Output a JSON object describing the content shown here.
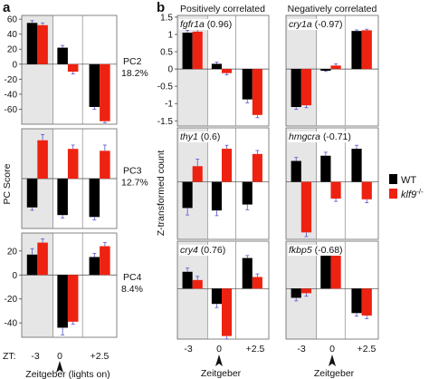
{
  "figure": {
    "panel_a_letter": "a",
    "panel_b_letter": "b",
    "pc_axis_label": "PC Score",
    "z_axis_label": "Z-transformed count",
    "zt_label": "ZT:",
    "x_ticks": [
      "-3",
      "0",
      "+2.5"
    ],
    "zeitgeber_a": "Zeitgeber (lights on)",
    "zeitgeber_b": "Zeitgeber",
    "pos_header": "Positively correlated",
    "neg_header": "Negatively correlated",
    "legend": {
      "wt": "WT",
      "mut_gene": "klf9",
      "mut_suffix": "-/-"
    },
    "colors": {
      "wt": "#000000",
      "mut": "#ee2211",
      "shade": "#e6e6e6",
      "err": "#5555cc"
    }
  },
  "chart_data": [
    {
      "type": "bar",
      "panel": "a",
      "name": "PC2",
      "pct": "18.2%",
      "ylim": [
        -80,
        65
      ],
      "yticks": [
        "60",
        "40",
        "20",
        "0",
        "-20",
        "-40",
        "-60"
      ],
      "categories": [
        "-3",
        "0",
        "+2.5"
      ],
      "series": [
        {
          "name": "WT",
          "values": [
            55,
            22,
            -57
          ],
          "err": [
            3,
            3,
            3
          ]
        },
        {
          "name": "klf9-/-",
          "values": [
            52,
            -10,
            -76
          ],
          "err": [
            3,
            3,
            2
          ]
        }
      ]
    },
    {
      "type": "bar",
      "panel": "a",
      "name": "PC3",
      "pct": "12.7%",
      "ylim": [
        -52,
        52
      ],
      "categories": [
        "-3",
        "0",
        "+2.5"
      ],
      "series": [
        {
          "name": "WT",
          "values": [
            -30,
            -38,
            -40
          ],
          "err": [
            3,
            3,
            3
          ]
        },
        {
          "name": "klf9-/-",
          "values": [
            40,
            31,
            29
          ],
          "err": [
            6,
            4,
            6
          ]
        }
      ]
    },
    {
      "type": "bar",
      "panel": "a",
      "name": "PC4",
      "pct": "8.4%",
      "ylim": [
        -52,
        35
      ],
      "yticks": [
        "20",
        "0",
        "-20",
        "-40"
      ],
      "categories": [
        "-3",
        "0",
        "+2.5"
      ],
      "series": [
        {
          "name": "WT",
          "values": [
            17,
            -44,
            15
          ],
          "err": [
            5,
            6,
            3
          ]
        },
        {
          "name": "klf9-/-",
          "values": [
            27,
            -39,
            24
          ],
          "err": [
            3,
            2,
            3
          ]
        }
      ]
    },
    {
      "type": "bar",
      "panel": "b",
      "name": "fgfr1a",
      "r": "(0.96)",
      "ylim": [
        -1.65,
        1.55
      ],
      "yticks": [
        "1.5",
        "1",
        "0.5",
        "0",
        "-0.5",
        "-1",
        "-1.5"
      ],
      "categories": [
        "-3",
        "0",
        "+2.5"
      ],
      "series": [
        {
          "name": "WT",
          "values": [
            1.05,
            0.15,
            -0.88
          ],
          "err": [
            0.07,
            0.05,
            0.1
          ]
        },
        {
          "name": "klf9-/-",
          "values": [
            1.08,
            -0.12,
            -1.33
          ],
          "err": [
            0.07,
            0.05,
            0.08
          ]
        }
      ]
    },
    {
      "type": "bar",
      "panel": "b",
      "name": "cry1a",
      "r": "(-0.97)",
      "ylim": [
        -1.65,
        1.55
      ],
      "categories": [
        "-3",
        "0",
        "+2.5"
      ],
      "series": [
        {
          "name": "WT",
          "values": [
            -1.1,
            -0.05,
            1.1
          ],
          "err": [
            0.07,
            0.02,
            0.03
          ]
        },
        {
          "name": "klf9-/-",
          "values": [
            -1.05,
            0.1,
            1.12
          ],
          "err": [
            0.07,
            0.05,
            0.03
          ]
        }
      ]
    },
    {
      "type": "bar",
      "panel": "b",
      "name": "thy1",
      "r": "(0.6)",
      "ylim": [
        -1.65,
        1.55
      ],
      "categories": [
        "-3",
        "0",
        "+2.5"
      ],
      "series": [
        {
          "name": "WT",
          "values": [
            -0.75,
            -0.82,
            -0.65
          ],
          "err": [
            0.2,
            0.15,
            0.15
          ]
        },
        {
          "name": "klf9-/-",
          "values": [
            0.45,
            0.95,
            0.8
          ],
          "err": [
            0.2,
            0.1,
            0.1
          ]
        }
      ]
    },
    {
      "type": "bar",
      "panel": "b",
      "name": "hmgcra",
      "r": "(-0.71)",
      "ylim": [
        -1.65,
        1.55
      ],
      "categories": [
        "-3",
        "0",
        "+2.5"
      ],
      "series": [
        {
          "name": "WT",
          "values": [
            0.6,
            0.75,
            0.95
          ],
          "err": [
            0.1,
            0.1,
            0.1
          ]
        },
        {
          "name": "klf9-/-",
          "values": [
            -1.45,
            -0.48,
            -0.5
          ],
          "err": [
            0.12,
            0.08,
            0.1
          ]
        }
      ]
    },
    {
      "type": "bar",
      "panel": "b",
      "name": "cry4",
      "r": "(0.76)",
      "ylim": [
        -1.65,
        1.55
      ],
      "categories": [
        "-3",
        "0",
        "+2.5"
      ],
      "series": [
        {
          "name": "WT",
          "values": [
            0.55,
            -0.5,
            1.0
          ],
          "err": [
            0.12,
            0.12,
            0.08
          ]
        },
        {
          "name": "klf9-/-",
          "values": [
            0.28,
            -1.55,
            0.38
          ],
          "err": [
            0.12,
            0.1,
            0.1
          ]
        }
      ]
    },
    {
      "type": "bar",
      "panel": "b",
      "name": "fkbp5",
      "r": "(-0.68)",
      "ylim": [
        -1.65,
        1.55
      ],
      "categories": [
        "-3",
        "0",
        "+2.5"
      ],
      "series": [
        {
          "name": "WT",
          "values": [
            -0.3,
            1.28,
            -0.8
          ],
          "err": [
            0.1,
            0.05,
            0.1
          ]
        },
        {
          "name": "klf9-/-",
          "values": [
            -0.15,
            1.32,
            -0.88
          ],
          "err": [
            0.1,
            0.05,
            0.1
          ]
        }
      ]
    }
  ]
}
